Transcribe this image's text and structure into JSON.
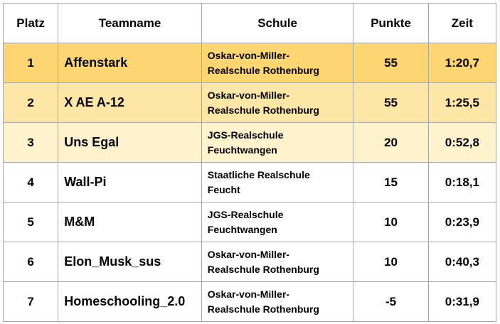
{
  "header": {
    "platz": "Platz",
    "teamname": "Teamname",
    "schule": "Schule",
    "punkte": "Punkte",
    "zeit": "Zeit"
  },
  "row_colors": [
    "#fdd671",
    "#fde6a6",
    "#fff2cc",
    "#ffffff",
    "#ffffff",
    "#ffffff",
    "#ffffff"
  ],
  "rows": [
    {
      "platz": "1",
      "team": "Affenstark",
      "schule_1": "Oskar-von-Miller-",
      "schule_2": "Realschule Rothenburg",
      "punkte": "55",
      "zeit": "1:20,7"
    },
    {
      "platz": "2",
      "team": "X AE A-12",
      "schule_1": "Oskar-von-Miller-",
      "schule_2": "Realschule Rothenburg",
      "punkte": "55",
      "zeit": "1:25,5"
    },
    {
      "platz": "3",
      "team": "Uns Egal",
      "schule_1": "JGS-Realschule",
      "schule_2": "Feuchtwangen",
      "punkte": "20",
      "zeit": "0:52,8"
    },
    {
      "platz": "4",
      "team": "Wall-Pi",
      "schule_1": "Staatliche Realschule",
      "schule_2": "Feucht",
      "punkte": "15",
      "zeit": "0:18,1"
    },
    {
      "platz": "5",
      "team": "M&M",
      "schule_1": "JGS-Realschule",
      "schule_2": "Feuchtwangen",
      "punkte": "10",
      "zeit": "0:23,9"
    },
    {
      "platz": "6",
      "team": "Elon_Musk_sus",
      "schule_1": "Oskar-von-Miller-",
      "schule_2": "Realschule Rothenburg",
      "punkte": "10",
      "zeit": "0:40,3"
    },
    {
      "platz": "7",
      "team": "Homeschooling_2.0",
      "schule_1": "Oskar-von-Miller-",
      "schule_2": "Realschule Rothenburg",
      "punkte": "-5",
      "zeit": "0:31,9"
    }
  ]
}
